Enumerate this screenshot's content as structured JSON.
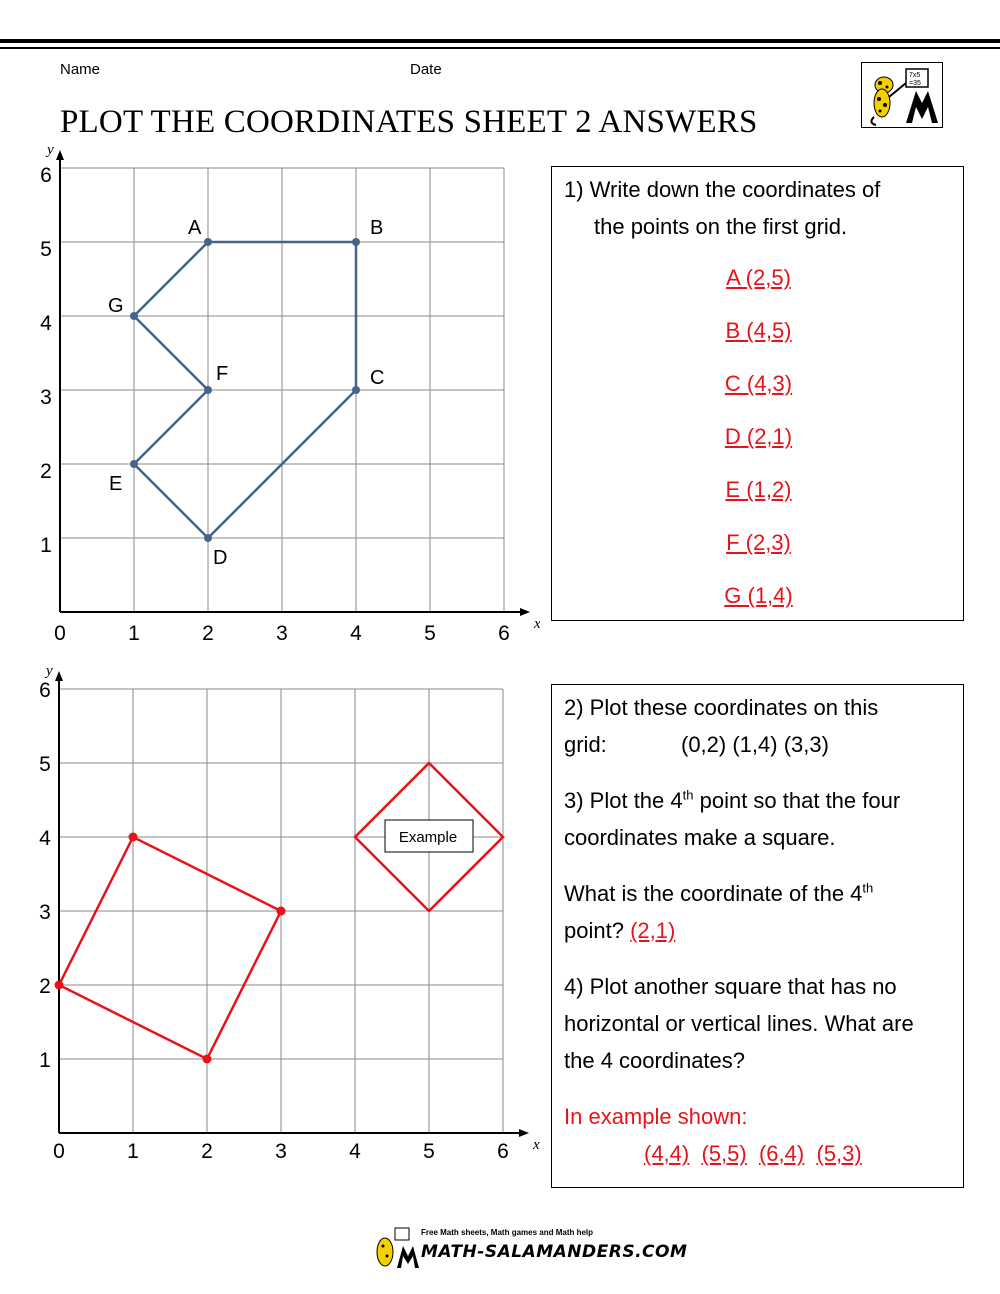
{
  "header": {
    "name_label": "Name",
    "date_label": "Date",
    "title": "PLOT THE COORDINATES SHEET 2 ANSWERS"
  },
  "grid1": {
    "axis_x": "x",
    "axis_y": "y",
    "x_ticks": [
      "0",
      "1",
      "2",
      "3",
      "4",
      "5",
      "6"
    ],
    "y_ticks": [
      "1",
      "2",
      "3",
      "4",
      "5",
      "6"
    ],
    "points": [
      {
        "label": "A",
        "x": 2,
        "y": 5
      },
      {
        "label": "B",
        "x": 4,
        "y": 5
      },
      {
        "label": "C",
        "x": 4,
        "y": 3
      },
      {
        "label": "D",
        "x": 2,
        "y": 1
      },
      {
        "label": "E",
        "x": 1,
        "y": 2
      },
      {
        "label": "F",
        "x": 2,
        "y": 3
      },
      {
        "label": "G",
        "x": 1,
        "y": 4
      }
    ],
    "color": "#44648c"
  },
  "grid2": {
    "axis_x": "x",
    "axis_y": "y",
    "x_ticks": [
      "0",
      "1",
      "2",
      "3",
      "4",
      "5",
      "6"
    ],
    "y_ticks": [
      "1",
      "2",
      "3",
      "4",
      "5",
      "6"
    ],
    "square": [
      {
        "x": 0,
        "y": 2
      },
      {
        "x": 1,
        "y": 4
      },
      {
        "x": 3,
        "y": 3
      },
      {
        "x": 2,
        "y": 1
      }
    ],
    "example_square": [
      {
        "x": 4,
        "y": 4
      },
      {
        "x": 5,
        "y": 5
      },
      {
        "x": 6,
        "y": 4
      },
      {
        "x": 5,
        "y": 3
      }
    ],
    "example_label": "Example",
    "color": "#e8131a"
  },
  "q1": {
    "line1": "1) Write down the coordinates of",
    "line2": "the points on the first grid.",
    "answers": [
      "A (2,5)",
      "B (4,5)",
      "C (4,3)",
      "D (2,1)",
      "E (1,2)",
      "F (2,3)",
      "G (1,4)"
    ]
  },
  "q2": {
    "line1": "2) Plot these coordinates on this",
    "line2_a": "grid:",
    "line2_b": "(0,2) (1,4) (3,3)"
  },
  "q3": {
    "line1_a": "3) Plot the 4",
    "sup": "th",
    "line1_b": " point so that the four",
    "line2": "coordinates make a square.",
    "line3_a": "What is the coordinate of the 4",
    "line3_b": "point?",
    "answer": "(2,1)"
  },
  "q4": {
    "line1": "4) Plot another square that has no",
    "line2": "horizontal or vertical lines. What are",
    "line3": "the 4 coordinates?",
    "example_intro": "In example shown:",
    "example_answers": [
      "(4,4)",
      "(5,5)",
      "(6,4)",
      "(5,3)"
    ]
  },
  "footer": {
    "tagline": "Free Math sheets, Math games and Math help",
    "site": "MATH-SALAMANDERS.COM"
  }
}
